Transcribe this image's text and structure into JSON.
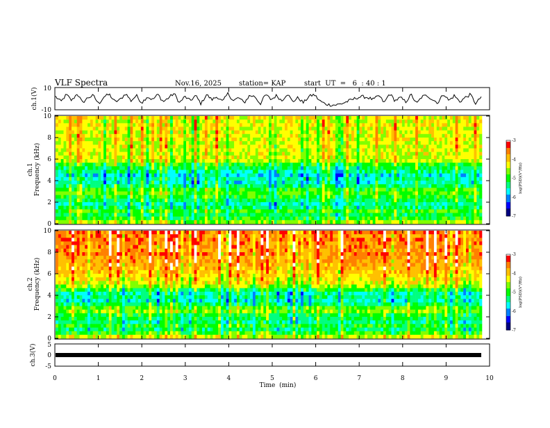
{
  "header": {
    "title": "VLF Spectra",
    "date": "Nov.16, 2025",
    "station": "station= KAP",
    "start": "start  UT  =   6  : 40 : 1"
  },
  "colors": {
    "palette": [
      "#000080",
      "#0000ff",
      "#0080ff",
      "#00ffff",
      "#00ff80",
      "#00ff00",
      "#80ff00",
      "#ffff00",
      "#ffc000",
      "#ff8000",
      "#ff0000",
      "#ffffff"
    ],
    "waveform": "#000000",
    "frame": "#000000"
  },
  "chart_data": [
    {
      "id": "ch1-waveform",
      "type": "line",
      "ylabel": "ch.1(V)",
      "ylim": [
        -10,
        10
      ],
      "yticklabels": [
        "10",
        "-10"
      ],
      "xlim": [
        0,
        10
      ],
      "series": [
        {
          "values_note": "",
          "values": [
            2,
            -3,
            4,
            -2,
            5,
            -4,
            1,
            3,
            -5,
            2,
            4,
            -3,
            -1,
            5,
            -2,
            3,
            -4,
            2,
            -1,
            4,
            -3,
            1,
            5,
            -4,
            2,
            -2,
            3,
            -5,
            4,
            -1,
            2,
            -3,
            5,
            -2,
            1,
            -4,
            3,
            2,
            -5,
            4,
            -1,
            3,
            -2,
            5,
            -3,
            1,
            -4,
            2,
            4,
            -2,
            -5,
            -6,
            -6,
            -5,
            -3,
            -1,
            1,
            2,
            1,
            -1,
            3,
            -4,
            5,
            -2,
            1,
            -3,
            4,
            -5,
            2,
            3,
            -1,
            -4,
            5,
            -2,
            3,
            -3,
            1,
            4,
            -5,
            2
          ]
        }
      ]
    },
    {
      "id": "ch1-spectrogram",
      "type": "heatmap",
      "ylabel": "ch.1\nFrequency (kHz)",
      "ylabel_lines": [
        "ch.1",
        "Frequency (kHz)"
      ],
      "ylim": [
        0,
        10
      ],
      "yticks": [
        0,
        2,
        4,
        6,
        8,
        10
      ],
      "xlim": [
        0,
        10
      ],
      "colorbar": {
        "min": -7,
        "max": -3,
        "ticks": [
          "-3",
          "-4",
          "-5",
          "-6",
          "-7"
        ],
        "label": "log(PSD)(V²/Hz)"
      },
      "profile": [
        -4.6,
        -5.0,
        -5.2,
        -4.9,
        -5.3,
        -5.5,
        -5.2,
        -5.0,
        -4.8,
        -4.9,
        -5.3,
        -5.6,
        -5.5,
        -5.7,
        -5.4,
        -5.2,
        -5.0,
        -4.5,
        -4.4,
        -4.4,
        -4.4,
        -4.3,
        -4.4,
        -4.3,
        -4.3,
        -4.3,
        -4.3,
        -4.2,
        -4.3,
        -4.2
      ],
      "profile_freq_kHz": "0-10"
    },
    {
      "id": "ch2-spectrogram",
      "type": "heatmap",
      "ylabel": "ch.2\nFrequency (kHz)",
      "ylabel_lines": [
        "ch.2",
        "Frequency (kHz)"
      ],
      "ylim": [
        0,
        10
      ],
      "yticks": [
        0,
        2,
        4,
        6,
        8,
        10
      ],
      "xlim": [
        0,
        10
      ],
      "colorbar": {
        "min": -7,
        "max": -3,
        "ticks": [
          "-3",
          "-4",
          "-5",
          "-6",
          "-7"
        ],
        "label": "log(PSD)(V²/Hz)"
      },
      "profile": [
        -4.4,
        -4.9,
        -5.3,
        -5.0,
        -5.4,
        -5.2,
        -5.1,
        -4.7,
        -4.8,
        -5.3,
        -5.6,
        -5.4,
        -5.5,
        -5.1,
        -4.6,
        -4.3,
        -4.2,
        -4.1,
        -4.0,
        -3.9,
        -3.8,
        -3.7,
        -3.7,
        -3.6,
        -3.6,
        -3.6,
        -3.6,
        -3.5,
        -3.6,
        -3.5
      ],
      "profile_freq_kHz": "0-10"
    },
    {
      "id": "ch3-waveform",
      "type": "line",
      "ylabel": "ch.3(V)",
      "ylim": [
        -5,
        5
      ],
      "yticklabels": [
        "5",
        "0",
        "-5"
      ],
      "xlim": [
        0,
        10
      ],
      "xticks": [
        0,
        1,
        2,
        3,
        4,
        5,
        6,
        7,
        8,
        9,
        10
      ],
      "xlabel": "Time  (min)",
      "series": [
        {
          "values": [
            0,
            0
          ]
        }
      ]
    }
  ]
}
